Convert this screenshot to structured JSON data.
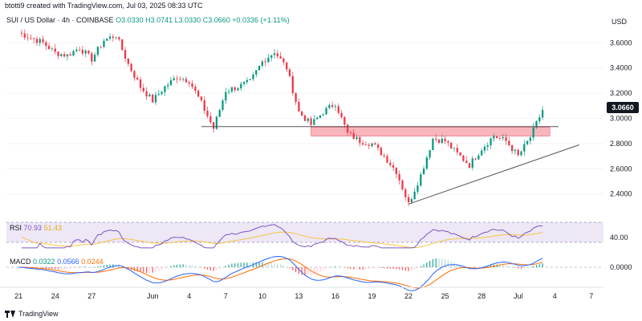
{
  "header": {
    "credit": "btotti9 created with TradingView.com, Jul 03, 2025 08:33 UTC",
    "symbol": "SUI / US Dollar · 4h · COINBASE",
    "ohlc_o": "O3.0330",
    "ohlc_h": "H3.0741",
    "ohlc_l": "L3.0330",
    "ohlc_c": "C3.0660",
    "change": "+0.0336 (+1.11%)"
  },
  "price_axis": {
    "currency": "USD",
    "current_price": "3.0660"
  },
  "rsi": {
    "label": "RSI",
    "value1": "70.93",
    "value2": "51.43",
    "level": "40.00"
  },
  "macd": {
    "label": "MACD",
    "value1": "0.0322",
    "value2": "0.0566",
    "value3": "0.0244",
    "level": "0.0000"
  },
  "footer": {
    "brand": "TradingView"
  },
  "colors": {
    "up": "#089981",
    "down": "#f23645",
    "zone": "#f7a8b0",
    "rsi_line": "#7e57c2",
    "rsi_ma": "#f5c542",
    "macd_line": "#2962ff",
    "signal_line": "#ff6d00"
  },
  "chart_data": {
    "type": "candlestick",
    "title": "SUI / US Dollar · 4h · COINBASE",
    "y_ticks": [
      "3.6000",
      "3.4000",
      "3.2000",
      "3.0000",
      "2.8000",
      "2.6000",
      "2.4000"
    ],
    "ylim": [
      2.22,
      3.85
    ],
    "x_ticks": [
      "21",
      "24",
      "27",
      "Jun",
      "4",
      "7",
      "10",
      "13",
      "16",
      "19",
      "22",
      "25",
      "28",
      "Jul",
      "4",
      "7"
    ],
    "price_path": [
      [
        "May 21",
        3.68
      ],
      [
        "May 23",
        3.6
      ],
      [
        "May 24",
        3.52
      ],
      [
        "May 25",
        3.5
      ],
      [
        "May 26",
        3.56
      ],
      [
        "May 27",
        3.47
      ],
      [
        "May 28",
        3.62
      ],
      [
        "May 29",
        3.66
      ],
      [
        "May 30",
        3.43
      ],
      [
        "May 31",
        3.25
      ],
      [
        "Jun 1",
        3.14
      ],
      [
        "Jun 2",
        3.25
      ],
      [
        "Jun 3",
        3.33
      ],
      [
        "Jun 4",
        3.3
      ],
      [
        "Jun 5",
        3.12
      ],
      [
        "Jun 6",
        2.92
      ],
      [
        "Jun 7",
        3.22
      ],
      [
        "Jun 8",
        3.25
      ],
      [
        "Jun 9",
        3.29
      ],
      [
        "Jun 10",
        3.45
      ],
      [
        "Jun 11",
        3.53
      ],
      [
        "Jun 12",
        3.4
      ],
      [
        "Jun 13",
        3.05
      ],
      [
        "Jun 14",
        2.95
      ],
      [
        "Jun 15",
        3.05
      ],
      [
        "Jun 16",
        3.12
      ],
      [
        "Jun 17",
        2.88
      ],
      [
        "Jun 18",
        2.82
      ],
      [
        "Jun 19",
        2.8
      ],
      [
        "Jun 20",
        2.7
      ],
      [
        "Jun 21",
        2.58
      ],
      [
        "Jun 22",
        2.32
      ],
      [
        "Jun 23",
        2.55
      ],
      [
        "Jun 24",
        2.84
      ],
      [
        "Jun 25",
        2.82
      ],
      [
        "Jun 26",
        2.72
      ],
      [
        "Jun 27",
        2.63
      ],
      [
        "Jun 28",
        2.76
      ],
      [
        "Jun 29",
        2.86
      ],
      [
        "Jun 30",
        2.82
      ],
      [
        "Jul 1",
        2.7
      ],
      [
        "Jul 2",
        2.85
      ],
      [
        "Jul 3",
        3.066
      ]
    ],
    "resistance_line": 2.935,
    "supply_zone": [
      2.86,
      2.93
    ],
    "ascending_trendline": [
      [
        "Jun 22",
        2.32
      ],
      [
        "Jul 6",
        2.79
      ]
    ],
    "rsi_current": 70.93,
    "macd_current": 0.0322
  }
}
